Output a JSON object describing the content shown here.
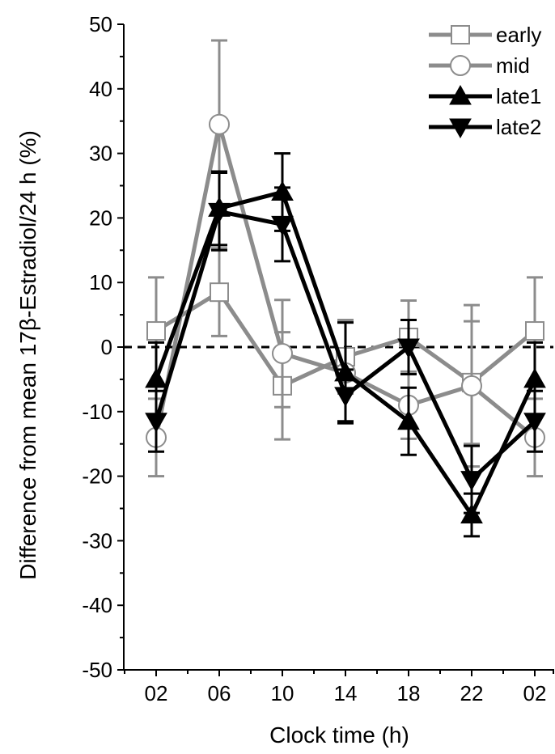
{
  "chart_data": {
    "type": "line",
    "xlabel": "Clock time (h)",
    "ylabel": "Difference from mean 17β-Estradiol/24 h (%)",
    "categories": [
      "02",
      "06",
      "10",
      "14",
      "18",
      "22",
      "02"
    ],
    "ylim": [
      -50,
      50
    ],
    "yticks": [
      -50,
      -40,
      -30,
      -20,
      -10,
      0,
      10,
      20,
      30,
      40,
      50
    ],
    "grid": false,
    "reference_line": 0,
    "legend_position": "top-right",
    "series": [
      {
        "name": "early",
        "color": "#8c8c8c",
        "marker": "square",
        "values": [
          2.5,
          8.5,
          -6,
          -1.5,
          1.5,
          -5.5,
          2.5
        ],
        "errors": [
          8.3,
          6.8,
          8.3,
          5.7,
          5.7,
          9.5,
          8.3
        ]
      },
      {
        "name": "mid",
        "color": "#8c8c8c",
        "marker": "circle",
        "values": [
          -14,
          34.5,
          -1,
          -4,
          -9,
          -6,
          -14
        ],
        "errors": [
          6,
          13,
          8.3,
          7.8,
          5.2,
          12.5,
          6
        ]
      },
      {
        "name": "late1",
        "color": "#000000",
        "marker": "triangle-up",
        "values": [
          -5,
          21.5,
          24,
          -4,
          -11.5,
          -26,
          -5
        ],
        "errors": [
          5.7,
          5.7,
          6,
          7.8,
          5.2,
          3.3,
          5.7
        ]
      },
      {
        "name": "late2",
        "color": "#000000",
        "marker": "triangle-down",
        "values": [
          -11.5,
          21,
          19,
          -7.5,
          0,
          -20.5,
          -11.5
        ],
        "errors": [
          4.7,
          6,
          5.7,
          4,
          4.2,
          5.2,
          4.7
        ]
      }
    ]
  }
}
